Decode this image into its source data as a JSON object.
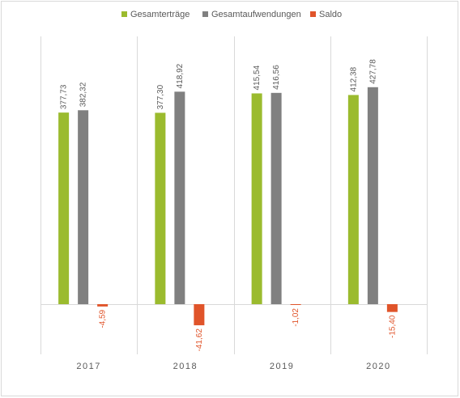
{
  "chart_data": {
    "type": "bar",
    "categories": [
      "2017",
      "2018",
      "2019",
      "2020"
    ],
    "series": [
      {
        "name": "Gesamterträge",
        "color": "#9BBB2E",
        "values": [
          377.73,
          377.3,
          415.54,
          412.38
        ],
        "labels": [
          "377,73",
          "377,30",
          "415,54",
          "412,38"
        ]
      },
      {
        "name": "Gesamtaufwendungen",
        "color": "#808080",
        "values": [
          382.32,
          418.92,
          416.56,
          427.78
        ],
        "labels": [
          "382,32",
          "418,92",
          "416,56",
          "427,78"
        ]
      },
      {
        "name": "Saldo",
        "color": "#E0542A",
        "values": [
          -4.59,
          -41.62,
          -1.02,
          -15.4
        ],
        "labels": [
          "-4,59",
          "-41,62",
          "-1,02",
          "-15,40"
        ]
      }
    ],
    "ylim": [
      -100,
      460
    ],
    "grid": false,
    "legend": "top-center"
  }
}
